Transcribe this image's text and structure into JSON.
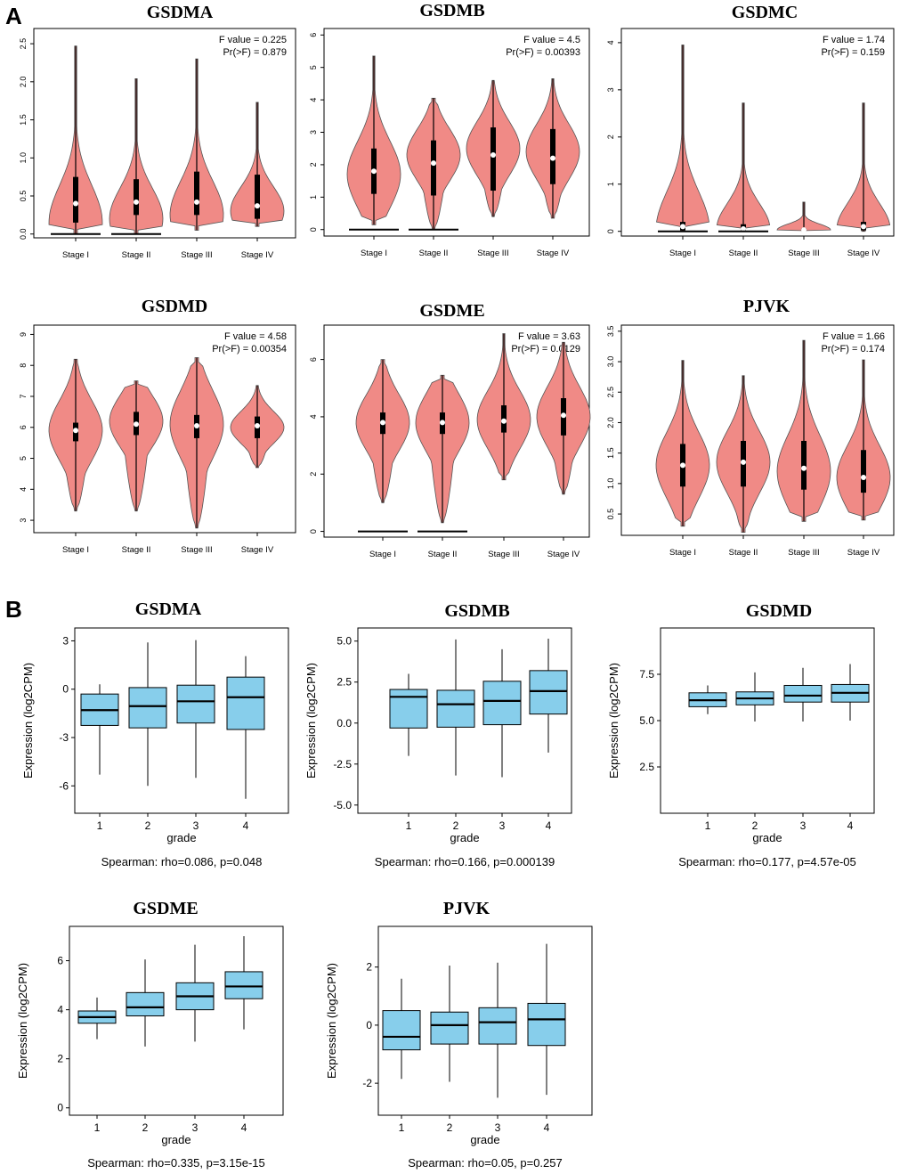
{
  "panel_labels": [
    "A",
    "B"
  ],
  "colors": {
    "violin": "#f08a86",
    "box": "#87ceeb",
    "ink": "#000000"
  },
  "chart_data": [
    {
      "type": "violin",
      "title": "GSDMA",
      "categories": [
        "Stage I",
        "Stage II",
        "Stage III",
        "Stage IV"
      ],
      "ylim": [
        -0.05,
        2.7
      ],
      "yticks": [
        "0.0",
        "0.5",
        "1.0",
        "1.5",
        "2.0",
        "2.5"
      ],
      "stats": [
        "F value = 0.225",
        "Pr(>F) = 0.879"
      ],
      "violins": [
        {
          "min": 0,
          "q1": 0.15,
          "median": 0.4,
          "q3": 0.75,
          "max": 2.47,
          "mode": 0.15,
          "flatzero": true
        },
        {
          "min": 0,
          "q1": 0.25,
          "median": 0.42,
          "q3": 0.72,
          "max": 2.04,
          "mode": 0.2,
          "flatzero": true
        },
        {
          "min": 0.05,
          "q1": 0.25,
          "median": 0.42,
          "q3": 0.82,
          "max": 2.3,
          "mode": 0.25,
          "flatzero": false
        },
        {
          "min": 0.1,
          "q1": 0.2,
          "median": 0.37,
          "q3": 0.78,
          "max": 1.73,
          "mode": 0.3,
          "flatzero": false
        }
      ]
    },
    {
      "type": "violin",
      "title": "GSDMB",
      "categories": [
        "Stage I",
        "Stage II",
        "Stage III",
        "Stage IV"
      ],
      "ylim": [
        -0.2,
        6.2
      ],
      "yticks": [
        "0",
        "1",
        "2",
        "3",
        "4",
        "5",
        "6"
      ],
      "stats": [
        "F value = 4.5",
        "Pr(>F) = 0.00393"
      ],
      "violins": [
        {
          "min": 0.15,
          "q1": 1.1,
          "median": 1.8,
          "q3": 2.5,
          "max": 5.35,
          "mode": 1.7,
          "flatzero": true
        },
        {
          "min": 0,
          "q1": 1.05,
          "median": 2.05,
          "q3": 2.75,
          "max": 4.05,
          "mode": 2.3,
          "flatzero": true
        },
        {
          "min": 0.4,
          "q1": 1.2,
          "median": 2.3,
          "q3": 3.15,
          "max": 4.6,
          "mode": 2.5,
          "flatzero": false
        },
        {
          "min": 0.35,
          "q1": 1.4,
          "median": 2.2,
          "q3": 3.1,
          "max": 4.65,
          "mode": 2.4,
          "flatzero": false
        }
      ]
    },
    {
      "type": "violin",
      "title": "GSDMC",
      "categories": [
        "Stage I",
        "Stage II",
        "Stage III",
        "Stage IV"
      ],
      "ylim": [
        -0.1,
        4.3
      ],
      "yticks": [
        "0",
        "1",
        "2",
        "3",
        "4"
      ],
      "stats": [
        "F value = 1.74",
        "Pr(>F) = 0.159"
      ],
      "violins": [
        {
          "min": 0,
          "q1": 0.02,
          "median": 0.1,
          "q3": 0.2,
          "max": 3.95,
          "mode": 0.05,
          "flatzero": true
        },
        {
          "min": 0,
          "q1": 0.02,
          "median": 0.05,
          "q3": 0.15,
          "max": 2.72,
          "mode": 0.05,
          "flatzero": true
        },
        {
          "min": 0,
          "q1": 0.01,
          "median": 0.03,
          "q3": 0.06,
          "max": 0.62,
          "mode": 0.03,
          "flatzero": false
        },
        {
          "min": 0,
          "q1": 0.02,
          "median": 0.1,
          "q3": 0.2,
          "max": 2.72,
          "mode": 0.05,
          "flatzero": false
        }
      ]
    },
    {
      "type": "violin",
      "title": "GSDMD",
      "categories": [
        "Stage I",
        "Stage II",
        "Stage III",
        "Stage IV"
      ],
      "ylim": [
        2.6,
        9.3
      ],
      "yticks": [
        "3",
        "4",
        "5",
        "6",
        "7",
        "8",
        "9"
      ],
      "stats": [
        "F value = 4.58",
        "Pr(>F) = 0.00354"
      ],
      "violins": [
        {
          "min": 3.3,
          "q1": 5.55,
          "median": 5.9,
          "q3": 6.15,
          "max": 8.2,
          "mode": 5.9,
          "flatzero": false
        },
        {
          "min": 3.3,
          "q1": 5.75,
          "median": 6.1,
          "q3": 6.5,
          "max": 7.5,
          "mode": 6.2,
          "flatzero": false
        },
        {
          "min": 2.75,
          "q1": 5.65,
          "median": 6.05,
          "q3": 6.4,
          "max": 8.25,
          "mode": 6.1,
          "flatzero": false
        },
        {
          "min": 4.7,
          "q1": 5.65,
          "median": 6.05,
          "q3": 6.35,
          "max": 7.35,
          "mode": 6.0,
          "flatzero": false
        }
      ]
    },
    {
      "type": "violin",
      "title": "GSDME",
      "categories": [
        "Stage I",
        "Stage II",
        "Stage III",
        "Stage IV"
      ],
      "ylim": [
        -0.2,
        7.2
      ],
      "yticks": [
        "0",
        "2",
        "4",
        "6"
      ],
      "stats": [
        "F value = 3.63",
        "Pr(>F) = 0.0129"
      ],
      "violins": [
        {
          "min": 1.0,
          "q1": 3.4,
          "median": 3.8,
          "q3": 4.15,
          "max": 6.0,
          "mode": 3.8,
          "flatzero": true
        },
        {
          "min": 0.3,
          "q1": 3.4,
          "median": 3.8,
          "q3": 4.15,
          "max": 5.45,
          "mode": 3.8,
          "flatzero": true
        },
        {
          "min": 1.8,
          "q1": 3.45,
          "median": 3.85,
          "q3": 4.4,
          "max": 6.9,
          "mode": 3.9,
          "flatzero": false
        },
        {
          "min": 1.3,
          "q1": 3.35,
          "median": 4.05,
          "q3": 4.65,
          "max": 6.6,
          "mode": 4.0,
          "flatzero": false
        }
      ]
    },
    {
      "type": "violin",
      "title": "PJVK",
      "categories": [
        "Stage I",
        "Stage II",
        "Stage III",
        "Stage IV"
      ],
      "ylim": [
        0.15,
        3.6
      ],
      "yticks": [
        "0.5",
        "1.0",
        "1.5",
        "2.0",
        "2.5",
        "3.0",
        "3.5"
      ],
      "stats": [
        "F value = 1.66",
        "Pr(>F) = 0.174"
      ],
      "violins": [
        {
          "min": 0.3,
          "q1": 0.95,
          "median": 1.3,
          "q3": 1.65,
          "max": 3.02,
          "mode": 1.3,
          "flatzero": false
        },
        {
          "min": 0.2,
          "q1": 0.95,
          "median": 1.35,
          "q3": 1.7,
          "max": 2.77,
          "mode": 1.35,
          "flatzero": false
        },
        {
          "min": 0.38,
          "q1": 0.9,
          "median": 1.25,
          "q3": 1.7,
          "max": 3.35,
          "mode": 1.2,
          "flatzero": false
        },
        {
          "min": 0.4,
          "q1": 0.85,
          "median": 1.1,
          "q3": 1.55,
          "max": 3.03,
          "mode": 1.1,
          "flatzero": false
        }
      ]
    },
    {
      "type": "box",
      "title": "GSDMA",
      "xlabel": "grade",
      "ylabel": "Expression (log2CPM)",
      "categories": [
        "1",
        "2",
        "3",
        "4"
      ],
      "ylim": [
        -7.7,
        3.8
      ],
      "yticks": [
        "3",
        "0",
        "-3",
        "-6"
      ],
      "caption": "Spearman: rho=0.086, p=0.048",
      "boxes": [
        {
          "min": -5.3,
          "q1": -2.25,
          "median": -1.3,
          "q3": -0.3,
          "max": 0.3
        },
        {
          "min": -6.0,
          "q1": -2.4,
          "median": -1.05,
          "q3": 0.1,
          "max": 2.9
        },
        {
          "min": -5.5,
          "q1": -2.1,
          "median": -0.75,
          "q3": 0.25,
          "max": 3.05
        },
        {
          "min": -6.8,
          "q1": -2.5,
          "median": -0.5,
          "q3": 0.75,
          "max": 2.05
        }
      ]
    },
    {
      "type": "box",
      "title": "GSDMB",
      "xlabel": "grade",
      "ylabel": "Expression (log2CPM)",
      "categories": [
        "1",
        "2",
        "3",
        "4"
      ],
      "ylim": [
        -5.5,
        5.8
      ],
      "yticks": [
        "5.0",
        "2.5",
        "0.0",
        "-2.5",
        "-5.0"
      ],
      "caption": "Spearman: rho=0.166, p=0.000139",
      "boxes": [
        {
          "min": -2.0,
          "q1": -0.3,
          "median": 1.6,
          "q3": 2.05,
          "max": 3.0
        },
        {
          "min": -3.2,
          "q1": -0.25,
          "median": 1.15,
          "q3": 2.0,
          "max": 5.1
        },
        {
          "min": -3.3,
          "q1": -0.1,
          "median": 1.35,
          "q3": 2.55,
          "max": 4.5
        },
        {
          "min": -1.8,
          "q1": 0.55,
          "median": 1.95,
          "q3": 3.2,
          "max": 5.15
        }
      ]
    },
    {
      "type": "box",
      "title": "GSDMD",
      "xlabel": "grade",
      "ylabel": "Expression (log2CPM)",
      "categories": [
        "1",
        "2",
        "3",
        "4"
      ],
      "ylim": [
        0.0,
        10.0
      ],
      "yticks": [
        "7.5",
        "5.0",
        "2.5"
      ],
      "caption": "Spearman: rho=0.177, p=4.57e-05",
      "boxes": [
        {
          "min": 5.35,
          "q1": 5.75,
          "median": 6.1,
          "q3": 6.5,
          "max": 6.9
        },
        {
          "min": 4.95,
          "q1": 5.85,
          "median": 6.2,
          "q3": 6.55,
          "max": 7.6
        },
        {
          "min": 4.95,
          "q1": 6.0,
          "median": 6.35,
          "q3": 6.9,
          "max": 7.85
        },
        {
          "min": 5.0,
          "q1": 6.0,
          "median": 6.5,
          "q3": 6.95,
          "max": 8.05
        }
      ]
    },
    {
      "type": "box",
      "title": "GSDME",
      "xlabel": "grade",
      "ylabel": "Expression (log2CPM)",
      "categories": [
        "1",
        "2",
        "3",
        "4"
      ],
      "ylim": [
        -0.3,
        7.4
      ],
      "yticks": [
        "6",
        "4",
        "2",
        "0"
      ],
      "caption": "Spearman: rho=0.335, p=3.15e-15",
      "boxes": [
        {
          "min": 2.8,
          "q1": 3.45,
          "median": 3.7,
          "q3": 3.95,
          "max": 4.5
        },
        {
          "min": 2.5,
          "q1": 3.75,
          "median": 4.1,
          "q3": 4.7,
          "max": 6.05
        },
        {
          "min": 2.7,
          "q1": 4.0,
          "median": 4.55,
          "q3": 5.1,
          "max": 6.65
        },
        {
          "min": 3.2,
          "q1": 4.45,
          "median": 4.95,
          "q3": 5.55,
          "max": 7.0
        }
      ]
    },
    {
      "type": "box",
      "title": "PJVK",
      "xlabel": "grade",
      "ylabel": "Expression (log2CPM)",
      "categories": [
        "1",
        "2",
        "3",
        "4"
      ],
      "ylim": [
        -3.1,
        3.4
      ],
      "yticks": [
        "2",
        "0",
        "-2"
      ],
      "caption": "Spearman: rho=0.05, p=0.257",
      "boxes": [
        {
          "min": -1.85,
          "q1": -0.85,
          "median": -0.4,
          "q3": 0.5,
          "max": 1.6
        },
        {
          "min": -1.95,
          "q1": -0.65,
          "median": 0.0,
          "q3": 0.45,
          "max": 2.05
        },
        {
          "min": -2.5,
          "q1": -0.65,
          "median": 0.1,
          "q3": 0.6,
          "max": 2.15
        },
        {
          "min": -2.4,
          "q1": -0.7,
          "median": 0.2,
          "q3": 0.75,
          "max": 2.8
        }
      ]
    }
  ]
}
